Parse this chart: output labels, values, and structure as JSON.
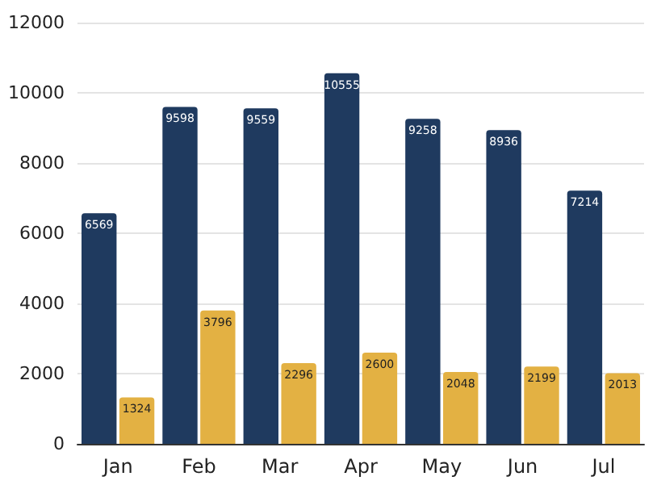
{
  "chart_data": {
    "type": "bar",
    "categories": [
      "Jan",
      "Feb",
      "Mar",
      "Apr",
      "May",
      "Jun",
      "Jul"
    ],
    "series": [
      {
        "color": "#1f3a5f",
        "values": [
          6569,
          9598,
          9559,
          10555,
          9258,
          8936,
          7214
        ]
      },
      {
        "color": "#e3b143",
        "values": [
          1324,
          3796,
          2296,
          2600,
          2048,
          2199,
          2013
        ]
      }
    ],
    "ylim": [
      0,
      12000
    ],
    "yticks": [
      0,
      2000,
      4000,
      6000,
      8000,
      10000,
      12000
    ],
    "grid": "y",
    "data_labels": true
  }
}
